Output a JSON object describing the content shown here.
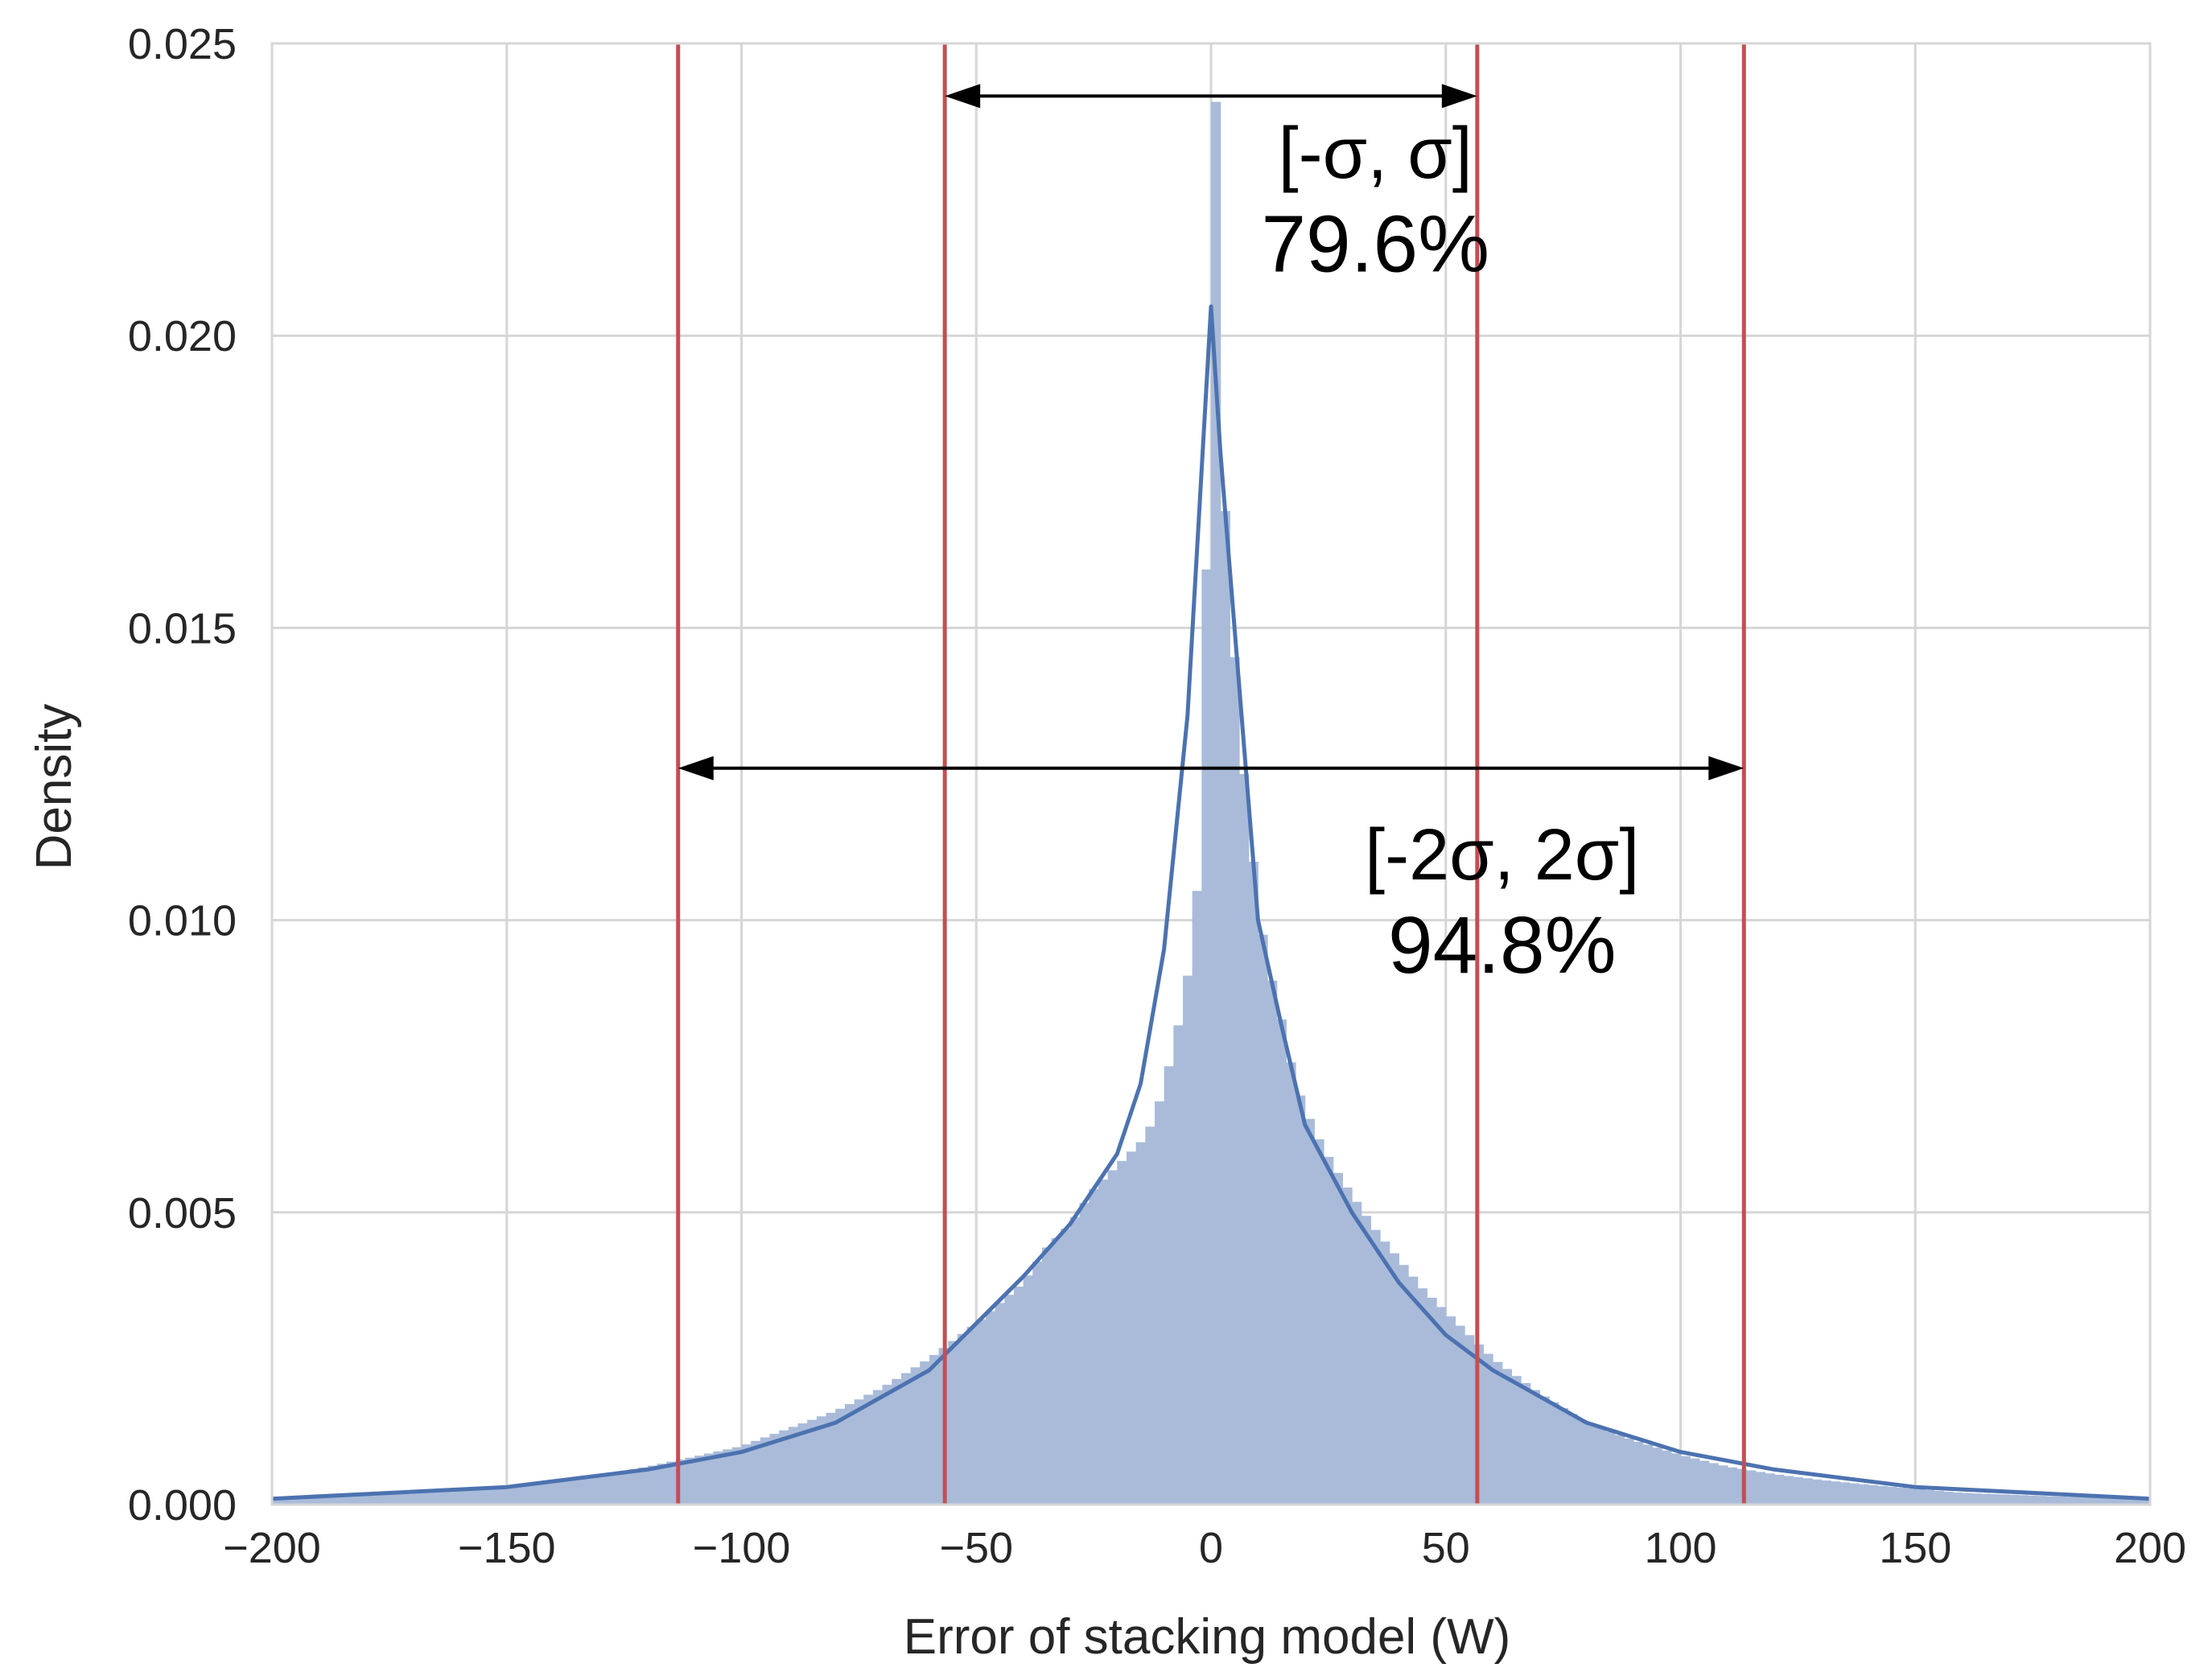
{
  "chart_data": {
    "type": "histogram",
    "xlabel": "Error of stacking model (W)",
    "ylabel": "Density",
    "xlim": [
      -200,
      200
    ],
    "ylim": [
      0,
      0.025
    ],
    "xticks": [
      -200,
      -150,
      -100,
      -50,
      0,
      50,
      100,
      150,
      200
    ],
    "xtick_labels": [
      "−200",
      "−150",
      "−100",
      "−50",
      "0",
      "50",
      "100",
      "150",
      "200"
    ],
    "yticks": [
      0,
      0.005,
      0.01,
      0.015,
      0.02,
      0.025
    ],
    "ytick_labels": [
      "0.000",
      "0.005",
      "0.010",
      "0.015",
      "0.020",
      "0.025"
    ],
    "grid": true,
    "colors": {
      "bars": "#a9bbd9",
      "kde": "#4c72b0",
      "vlines": "#c44e52",
      "grid": "#d6d6d6",
      "arrows": "#000000"
    },
    "histogram_profile": [
      [
        -200,
        0.0001
      ],
      [
        -180,
        0.00015
      ],
      [
        -160,
        0.00024
      ],
      [
        -150,
        0.0003
      ],
      [
        -140,
        0.0004
      ],
      [
        -130,
        0.0005
      ],
      [
        -120,
        0.00065
      ],
      [
        -110,
        0.00082
      ],
      [
        -100,
        0.001
      ],
      [
        -90,
        0.0013
      ],
      [
        -80,
        0.0016
      ],
      [
        -70,
        0.002
      ],
      [
        -60,
        0.0025
      ],
      [
        -50,
        0.0031
      ],
      [
        -40,
        0.0038
      ],
      [
        -35,
        0.0044
      ],
      [
        -30,
        0.0048
      ],
      [
        -25,
        0.0054
      ],
      [
        -20,
        0.0058
      ],
      [
        -15,
        0.0062
      ],
      [
        -12,
        0.0066
      ],
      [
        -10,
        0.0072
      ],
      [
        -8,
        0.0078
      ],
      [
        -6,
        0.0086
      ],
      [
        -4,
        0.0095
      ],
      [
        -3,
        0.0105
      ],
      [
        -2,
        0.0125
      ],
      [
        -1,
        0.016
      ],
      [
        0,
        0.025
      ],
      [
        1,
        0.024
      ],
      [
        2,
        0.02
      ],
      [
        3,
        0.017
      ],
      [
        4,
        0.0155
      ],
      [
        5,
        0.0145
      ],
      [
        6,
        0.013
      ],
      [
        7,
        0.0125
      ],
      [
        8,
        0.0118
      ],
      [
        9,
        0.011
      ],
      [
        10,
        0.0102
      ],
      [
        12,
        0.0093
      ],
      [
        15,
        0.0083
      ],
      [
        18,
        0.0072
      ],
      [
        22,
        0.0064
      ],
      [
        26,
        0.0058
      ],
      [
        30,
        0.0053
      ],
      [
        35,
        0.0047
      ],
      [
        40,
        0.0042
      ],
      [
        45,
        0.0037
      ],
      [
        50,
        0.0033
      ],
      [
        55,
        0.0029
      ],
      [
        60,
        0.0025
      ],
      [
        65,
        0.0022
      ],
      [
        70,
        0.0019
      ],
      [
        80,
        0.0014
      ],
      [
        90,
        0.0011
      ],
      [
        100,
        0.00085
      ],
      [
        110,
        0.00065
      ],
      [
        120,
        0.00052
      ],
      [
        130,
        0.00042
      ],
      [
        140,
        0.00034
      ],
      [
        150,
        0.00027
      ],
      [
        160,
        0.0002
      ],
      [
        180,
        0.00014
      ],
      [
        200,
        0.0001
      ]
    ],
    "kde_curve": [
      [
        -200,
        0.0001
      ],
      [
        -150,
        0.0003
      ],
      [
        -120,
        0.0006
      ],
      [
        -100,
        0.0009
      ],
      [
        -80,
        0.0014
      ],
      [
        -60,
        0.0023
      ],
      [
        -50,
        0.0031
      ],
      [
        -40,
        0.0039
      ],
      [
        -30,
        0.0048
      ],
      [
        -25,
        0.0054
      ],
      [
        -20,
        0.006
      ],
      [
        -15,
        0.0072
      ],
      [
        -10,
        0.0095
      ],
      [
        -5,
        0.0135
      ],
      [
        0,
        0.0205
      ],
      [
        2,
        0.018
      ],
      [
        5,
        0.015
      ],
      [
        10,
        0.01
      ],
      [
        15,
        0.0082
      ],
      [
        20,
        0.0065
      ],
      [
        30,
        0.005
      ],
      [
        40,
        0.0038
      ],
      [
        50,
        0.0029
      ],
      [
        60,
        0.0023
      ],
      [
        80,
        0.0014
      ],
      [
        100,
        0.0009
      ],
      [
        120,
        0.0006
      ],
      [
        150,
        0.0003
      ],
      [
        200,
        0.0001
      ]
    ],
    "vertical_lines": [
      -113.5,
      -56.7,
      56.7,
      113.5
    ],
    "arrows": [
      {
        "from": -56.7,
        "to": 56.7,
        "y": 0.0241
      },
      {
        "from": -113.5,
        "to": 113.5,
        "y": 0.0126
      }
    ],
    "annotations": [
      {
        "id": "sigma1",
        "line1": "[-σ, σ]",
        "line2": "79.6%",
        "x": 35,
        "y1": 0.0227,
        "y2": 0.0211
      },
      {
        "id": "sigma2",
        "line1": "[-2σ, 2σ]",
        "line2": "94.8%",
        "x": 62,
        "y1": 0.0107,
        "y2": 0.0091
      }
    ]
  }
}
